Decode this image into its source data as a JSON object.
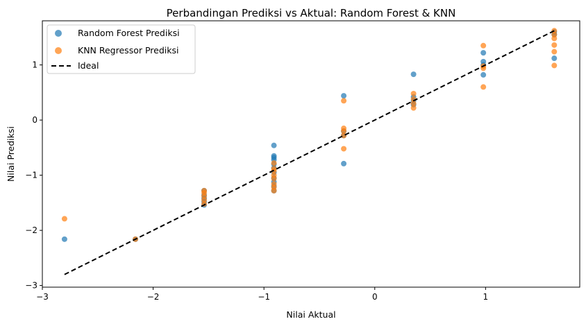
{
  "chart_data": {
    "type": "scatter",
    "title": "Perbandingan Prediksi vs Aktual: Random Forest & KNN",
    "xlabel": "Nilai Aktual",
    "ylabel": "Nilai Prediksi",
    "xlim": [
      -3.0,
      1.85
    ],
    "ylim": [
      -3.03,
      1.8
    ],
    "xticks": [
      -3,
      -2,
      -1,
      0,
      1
    ],
    "yticks": [
      -3,
      -2,
      -1,
      0,
      1
    ],
    "xtick_labels": [
      "−3",
      "−2",
      "−1",
      "0",
      "1"
    ],
    "ytick_labels": [
      "−3",
      "−2",
      "−1",
      "0",
      "1"
    ],
    "grid": false,
    "legend_position": "upper-left",
    "legend": [
      "Random Forest Prediksi",
      "KNN Regressor Prediksi",
      "Ideal"
    ],
    "series": [
      {
        "name": "Random Forest Prediksi",
        "color": "#1f77b4",
        "points": [
          [
            -2.8,
            -2.16
          ],
          [
            -2.16,
            -2.16
          ],
          [
            -1.54,
            -1.28
          ],
          [
            -1.54,
            -1.36
          ],
          [
            -1.54,
            -1.42
          ],
          [
            -1.54,
            -1.48
          ],
          [
            -1.54,
            -1.54
          ],
          [
            -0.91,
            -0.46
          ],
          [
            -0.91,
            -0.65
          ],
          [
            -0.91,
            -0.68
          ],
          [
            -0.91,
            -0.72
          ],
          [
            -0.91,
            -0.8
          ],
          [
            -0.91,
            -0.87
          ],
          [
            -0.91,
            -0.95
          ],
          [
            -0.91,
            -1.05
          ],
          [
            -0.91,
            -1.12
          ],
          [
            -0.91,
            -1.2
          ],
          [
            -0.91,
            -1.28
          ],
          [
            -0.28,
            0.44
          ],
          [
            -0.28,
            -0.2
          ],
          [
            -0.28,
            -0.28
          ],
          [
            -0.28,
            -0.79
          ],
          [
            0.35,
            0.83
          ],
          [
            0.35,
            0.42
          ],
          [
            0.35,
            0.35
          ],
          [
            0.35,
            0.28
          ],
          [
            0.98,
            1.22
          ],
          [
            0.98,
            1.06
          ],
          [
            0.98,
            1.0
          ],
          [
            0.98,
            0.82
          ],
          [
            1.62,
            1.6
          ],
          [
            1.62,
            1.55
          ],
          [
            1.62,
            1.12
          ]
        ]
      },
      {
        "name": "KNN Regressor Prediksi",
        "color": "#ff7f0e",
        "points": [
          [
            -2.8,
            -1.79
          ],
          [
            -2.16,
            -2.16
          ],
          [
            -1.54,
            -1.28
          ],
          [
            -1.54,
            -1.32
          ],
          [
            -1.54,
            -1.38
          ],
          [
            -1.54,
            -1.45
          ],
          [
            -1.54,
            -1.52
          ],
          [
            -0.91,
            -0.78
          ],
          [
            -0.91,
            -0.88
          ],
          [
            -0.91,
            -0.92
          ],
          [
            -0.91,
            -1.0
          ],
          [
            -0.91,
            -1.06
          ],
          [
            -0.91,
            -1.16
          ],
          [
            -0.91,
            -1.22
          ],
          [
            -0.91,
            -1.28
          ],
          [
            -0.28,
            0.35
          ],
          [
            -0.28,
            -0.15
          ],
          [
            -0.28,
            -0.2
          ],
          [
            -0.28,
            -0.28
          ],
          [
            -0.28,
            -0.52
          ],
          [
            0.35,
            0.48
          ],
          [
            0.35,
            0.38
          ],
          [
            0.35,
            0.3
          ],
          [
            0.35,
            0.22
          ],
          [
            0.98,
            1.35
          ],
          [
            0.98,
            0.98
          ],
          [
            0.98,
            0.94
          ],
          [
            0.98,
            0.6
          ],
          [
            1.62,
            1.62
          ],
          [
            1.62,
            1.55
          ],
          [
            1.62,
            1.48
          ],
          [
            1.62,
            1.36
          ],
          [
            1.62,
            1.24
          ],
          [
            1.62,
            0.99
          ]
        ]
      },
      {
        "name": "Ideal",
        "color": "#000000",
        "line": [
          [
            -2.8,
            -2.8
          ],
          [
            1.62,
            1.62
          ]
        ]
      }
    ]
  }
}
